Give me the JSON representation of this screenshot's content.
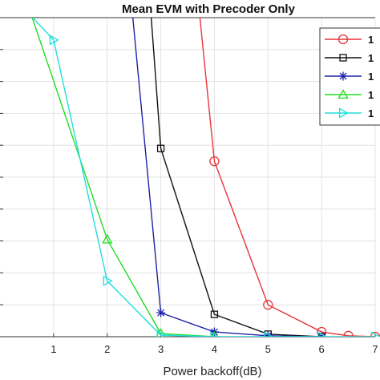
{
  "chart_data": {
    "type": "line",
    "title": "Mean EVM with Precoder Only",
    "xlabel": "Power backoff(dB)",
    "ylabel": "",
    "xlim": [
      0,
      7
    ],
    "ylim": [
      0,
      10
    ],
    "xticks": [
      "1",
      "2",
      "3",
      "4",
      "5",
      "6",
      "7"
    ],
    "grid": true,
    "legend_position": "top-right",
    "series": [
      {
        "name": "1",
        "color": "#e8343a",
        "marker": "circle",
        "x": [
          3.7,
          4,
          5,
          6,
          6.5,
          7
        ],
        "y": [
          10.5,
          5.5,
          1.0,
          0.15,
          0.03,
          0.0
        ]
      },
      {
        "name": "1",
        "color": "#111111",
        "marker": "square",
        "x": [
          2.8,
          3,
          4,
          5,
          6
        ],
        "y": [
          10.5,
          5.9,
          0.7,
          0.08,
          0.0
        ]
      },
      {
        "name": "1",
        "color": "#1e22a8",
        "marker": "star",
        "x": [
          2.45,
          3,
          4,
          5,
          6
        ],
        "y": [
          10.5,
          0.75,
          0.15,
          0.03,
          0.0
        ]
      },
      {
        "name": "1",
        "color": "#22dd22",
        "marker": "triangle-up",
        "x": [
          0.5,
          2,
          3,
          4
        ],
        "y": [
          10.5,
          3.05,
          0.1,
          0.0
        ]
      },
      {
        "name": "1",
        "color": "#22dddd",
        "marker": "triangle-right",
        "x": [
          0.5,
          1,
          2,
          3,
          4,
          5,
          6,
          7
        ],
        "y": [
          10.2,
          9.3,
          1.75,
          0.05,
          0.0,
          0.0,
          0.0,
          0.0
        ]
      }
    ]
  }
}
